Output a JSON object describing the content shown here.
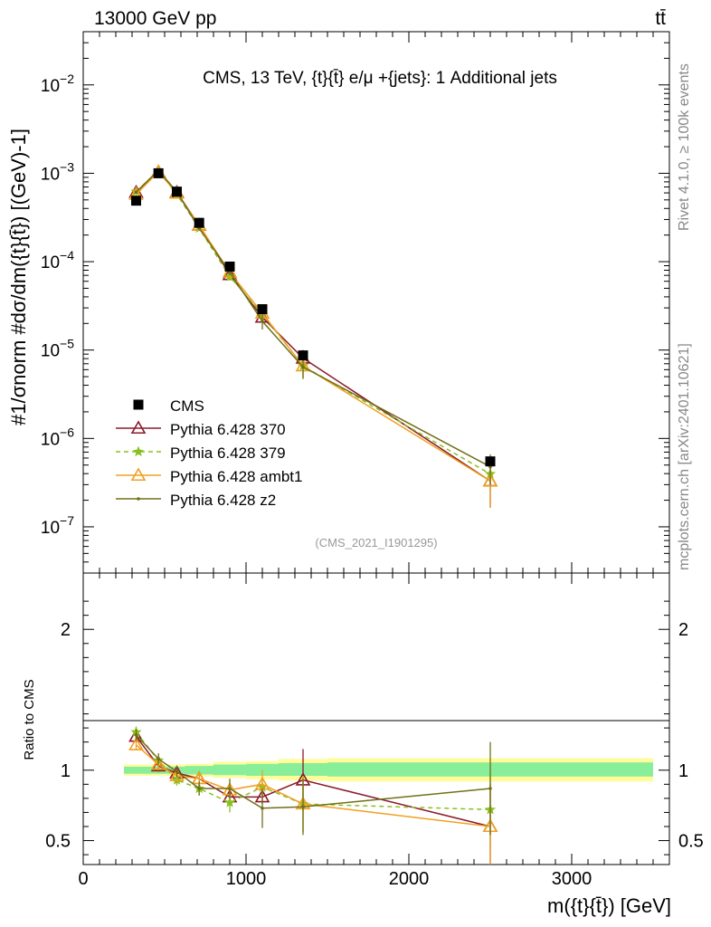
{
  "header": {
    "energy_label": "13000 GeV pp",
    "process_label": "tt̄",
    "plot_title": "CMS, 13 TeV, {t}{t̄} e/μ +{jets}: 1 Additional jets",
    "analysis_id": "(CMS_2021_I1901295)",
    "rivet_label": "Rivet 4.1.0, ≥ 100k events",
    "mcplots_label": "mcplots.cern.ch [arXiv:2401.10621]"
  },
  "axes": {
    "ylabel_main": "#1/σnorm #dσ/dm({t}{t̄}) [(GeV)-1]",
    "ylabel_ratio": "Ratio to CMS",
    "xlabel": "m({t}{t̄}) [GeV]"
  },
  "chart_data": {
    "type": "line",
    "main": {
      "yscale": "log",
      "ylim": [
        3e-08,
        0.04
      ],
      "xlim": [
        0,
        3600
      ],
      "ytick_labels": [
        "10−7",
        "10−6",
        "10−5",
        "10−4",
        "10−3",
        "10−2"
      ],
      "ytick_values": [
        1e-07,
        1e-06,
        1e-05,
        0.0001,
        0.001,
        0.01
      ]
    },
    "ratio": {
      "ylim": [
        0.33,
        2.4
      ],
      "ytick_labels": [
        "0.5",
        "1",
        "2"
      ],
      "ytick_values": [
        0.5,
        1,
        2
      ],
      "band_inner_color": "#88ee99",
      "band_outer_color": "#fffc99",
      "band_segments": [
        {
          "x0": 250,
          "x1": 400,
          "inner": [
            0.975,
            1.025
          ],
          "outer": [
            0.96,
            1.04
          ]
        },
        {
          "x0": 400,
          "x1": 525,
          "inner": [
            0.975,
            1.025
          ],
          "outer": [
            0.96,
            1.04
          ]
        },
        {
          "x0": 525,
          "x1": 625,
          "inner": [
            0.975,
            1.025
          ],
          "outer": [
            0.96,
            1.04
          ]
        },
        {
          "x0": 625,
          "x1": 800,
          "inner": [
            0.97,
            1.03
          ],
          "outer": [
            0.955,
            1.045
          ]
        },
        {
          "x0": 800,
          "x1": 1000,
          "inner": [
            0.965,
            1.04
          ],
          "outer": [
            0.945,
            1.06
          ]
        },
        {
          "x0": 1000,
          "x1": 1200,
          "inner": [
            0.96,
            1.045
          ],
          "outer": [
            0.935,
            1.065
          ]
        },
        {
          "x0": 1200,
          "x1": 1500,
          "inner": [
            0.96,
            1.05
          ],
          "outer": [
            0.925,
            1.08
          ]
        },
        {
          "x0": 1500,
          "x1": 3500,
          "inner": [
            0.955,
            1.055
          ],
          "outer": [
            0.92,
            1.085
          ]
        }
      ]
    },
    "x_ticks": [
      0,
      1000,
      2000,
      3000
    ],
    "x_tick_labels": [
      "0",
      "1000",
      "2000",
      "3000"
    ],
    "cms": {
      "name": "CMS",
      "color": "#000000",
      "x": [
        325,
        462,
        575,
        712,
        900,
        1100,
        1350,
        2500
      ],
      "y": [
        0.00049,
        0.001,
        0.00062,
        0.000275,
        8.8e-05,
        2.9e-05,
        8.7e-06,
        5.5e-07
      ]
    },
    "series": [
      {
        "name": "Pythia 6.428 370",
        "color": "#8b1a2b",
        "marker": "triangle-open",
        "dash": "",
        "x": [
          325,
          462,
          575,
          712,
          900,
          1100,
          1350,
          2500
        ],
        "ratio": [
          1.24,
          1.03,
          0.98,
          0.94,
          0.81,
          0.81,
          0.93,
          0.6
        ],
        "ratio_err": [
          0.04,
          0.04,
          0.04,
          0.04,
          0.05,
          0.05,
          0.22,
          0.3
        ]
      },
      {
        "name": "Pythia 6.428 379",
        "color": "#88c020",
        "marker": "star",
        "dash": "5,4",
        "x": [
          325,
          462,
          575,
          712,
          900,
          1100,
          1350,
          2500
        ],
        "ratio": [
          1.27,
          1.07,
          0.93,
          0.87,
          0.77,
          0.88,
          0.76,
          0.72
        ],
        "ratio_err": [
          0.04,
          0.04,
          0.04,
          0.05,
          0.07,
          0.06,
          0.2,
          0.26
        ]
      },
      {
        "name": "Pythia 6.428 ambt1",
        "color": "#f0a020",
        "marker": "triangle-open",
        "dash": "",
        "x": [
          325,
          462,
          575,
          712,
          900,
          1100,
          1350,
          2500
        ],
        "ratio": [
          1.18,
          1.04,
          0.96,
          0.94,
          0.86,
          0.9,
          0.76,
          0.6
        ],
        "ratio_err": [
          0.04,
          0.04,
          0.04,
          0.04,
          0.06,
          0.1,
          0.2,
          0.3
        ]
      },
      {
        "name": "Pythia 6.428 z2",
        "color": "#707018",
        "marker": "dot",
        "dash": "",
        "x": [
          325,
          462,
          575,
          712,
          900,
          1100,
          1350,
          2500
        ],
        "ratio": [
          1.25,
          1.08,
          0.99,
          0.87,
          0.87,
          0.73,
          0.74,
          0.87
        ],
        "ratio_err": [
          0.04,
          0.04,
          0.04,
          0.05,
          0.07,
          0.14,
          0.2,
          0.33
        ]
      }
    ]
  }
}
